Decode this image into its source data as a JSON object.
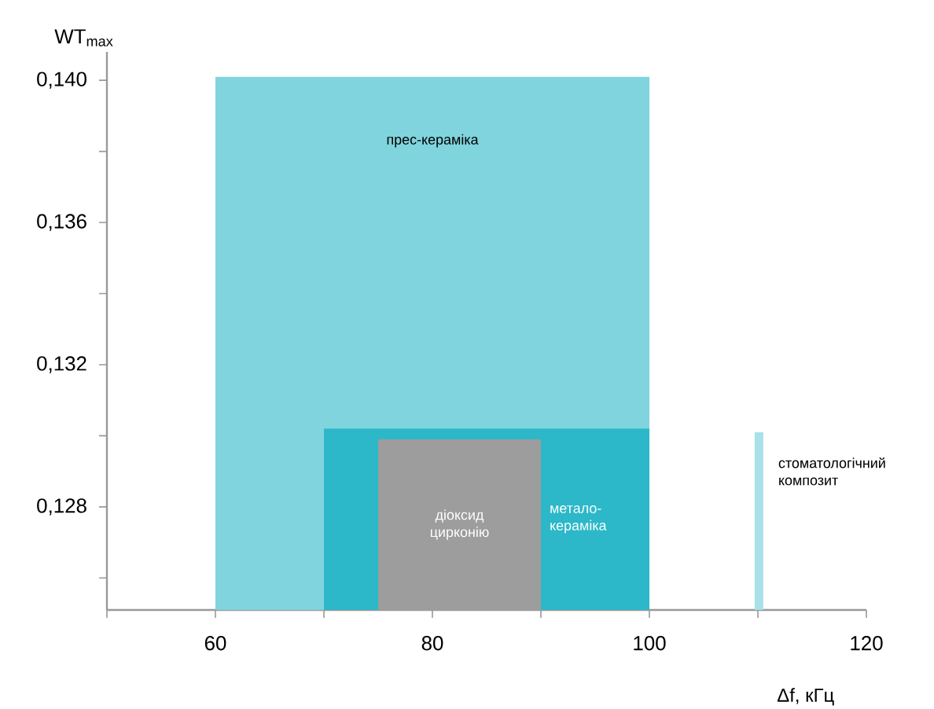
{
  "chart_data": {
    "type": "area",
    "xlabel": "Δf, кГц",
    "ylabel": "WT$_{max}$",
    "xlim": [
      50,
      120
    ],
    "ylim": [
      0.1251,
      0.1408
    ],
    "xticks": [
      {
        "value": 50,
        "label": null
      },
      60,
      {
        "value": 70,
        "label": null
      },
      80,
      {
        "value": 90,
        "label": null
      },
      100,
      {
        "value": 110,
        "label": null
      },
      120
    ],
    "yticks": [
      {
        "value": 0.126,
        "label": null
      },
      {
        "value": 0.128,
        "label": "0,128"
      },
      {
        "value": 0.13,
        "label": null
      },
      {
        "value": 0.132,
        "label": "0,132"
      },
      {
        "value": 0.134,
        "label": null
      },
      {
        "value": 0.136,
        "label": "0,136"
      },
      {
        "value": 0.138,
        "label": null
      },
      {
        "value": 0.14,
        "label": "0,140"
      }
    ],
    "series": [
      {
        "name": "прес-кераміка",
        "color": "#80d4dd",
        "x": [
          60,
          100
        ],
        "values": [
          0.1401,
          0.1401
        ]
      },
      {
        "name": "метало-кераміка",
        "color": "#2cb8c8",
        "x": [
          70,
          100
        ],
        "values": [
          0.1302,
          0.1302
        ]
      },
      {
        "name": "діоксид цирконію",
        "color": "#9d9d9d",
        "x": [
          75,
          90
        ],
        "values": [
          0.1299,
          0.1299
        ]
      },
      {
        "name": "стоматологічний композит",
        "color": "#a8e1e8",
        "x": [
          109.7,
          110.5
        ],
        "values": [
          0.1301,
          0.1301
        ]
      }
    ]
  }
}
